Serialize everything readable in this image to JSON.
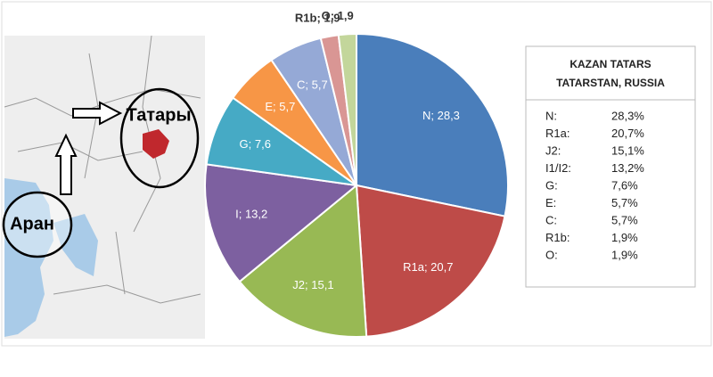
{
  "chart_data": {
    "type": "pie",
    "categories": [
      "N",
      "R1a",
      "J2",
      "I",
      "G",
      "E",
      "C",
      "R1b",
      "O"
    ],
    "values": [
      28.3,
      20.7,
      15.1,
      13.2,
      7.6,
      5.7,
      5.7,
      1.9,
      1.9
    ],
    "value_labels": [
      "N; 28,3",
      "R1a; 20,7",
      "J2; 15,1",
      "I; 13,2",
      "G; 7,6",
      "E; 5,7",
      "C; 5,7",
      "R1b; 1,9",
      "O; 1,9"
    ],
    "colors": [
      "#4a7ebb",
      "#be4b48",
      "#98b954",
      "#7d60a0",
      "#46aac5",
      "#f79646",
      "#95a9d6",
      "#d99694",
      "#c3d69b"
    ]
  },
  "map_labels": [
    "Татары",
    "Аран"
  ],
  "table": {
    "title": [
      "KAZAN TATARS",
      "TATARSTAN, RUSSIA"
    ],
    "rows": [
      [
        "N:",
        "28,3%"
      ],
      [
        "R1a:",
        "20,7%"
      ],
      [
        "J2:",
        "15,1%"
      ],
      [
        "I1/I2:",
        "13,2%"
      ],
      [
        "G:",
        "7,6%"
      ],
      [
        "E:",
        "5,7%"
      ],
      [
        "C:",
        "5,7%"
      ],
      [
        "R1b:",
        "1,9%"
      ],
      [
        "O:",
        "1,9%"
      ]
    ]
  }
}
